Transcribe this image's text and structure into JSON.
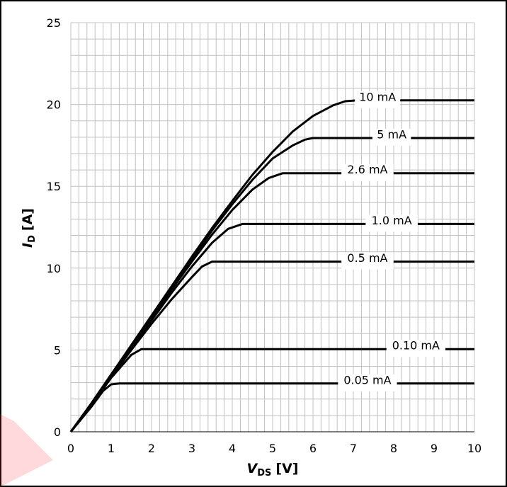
{
  "chart_data": {
    "type": "line",
    "title": "",
    "xlabel_symbol": "V",
    "xlabel_sub": "DS",
    "xlabel_unit": "[V]",
    "ylabel_symbol": "I",
    "ylabel_sub": "D",
    "ylabel_unit": "[A]",
    "xlim": [
      0,
      10
    ],
    "ylim": [
      0,
      25
    ],
    "x_ticks": [
      0,
      1,
      2,
      3,
      4,
      5,
      6,
      7,
      8,
      9,
      10
    ],
    "x_tick_labels": [
      "0",
      "1",
      "2",
      "3",
      "4",
      "5",
      "6",
      "7",
      "8",
      "9",
      "10"
    ],
    "y_ticks": [
      0,
      5,
      10,
      15,
      20,
      25
    ],
    "y_tick_labels": [
      "0",
      "5",
      "10",
      "15",
      "20",
      "25"
    ],
    "grid": true,
    "minor_grid_step_x": 0.2,
    "minor_grid_step_y": 1,
    "line_color": "#000000",
    "grid_color": "#c0c0c0",
    "series": [
      {
        "name": "0.05 mA",
        "label_x": 7.35,
        "points": [
          [
            0,
            0
          ],
          [
            0.5,
            1.5
          ],
          [
            0.8,
            2.5
          ],
          [
            1.0,
            2.9
          ],
          [
            1.2,
            2.95
          ],
          [
            10,
            2.95
          ]
        ]
      },
      {
        "name": "0.10 mA",
        "label_x": 8.55,
        "points": [
          [
            0,
            0
          ],
          [
            0.5,
            1.6
          ],
          [
            1.0,
            3.3
          ],
          [
            1.5,
            4.7
          ],
          [
            1.75,
            5.05
          ],
          [
            2.0,
            5.05
          ],
          [
            10,
            5.05
          ]
        ]
      },
      {
        "name": "0.5 mA",
        "label_x": 7.35,
        "points": [
          [
            0,
            0
          ],
          [
            0.5,
            1.65
          ],
          [
            1.0,
            3.35
          ],
          [
            1.5,
            5.0
          ],
          [
            2.0,
            6.6
          ],
          [
            2.5,
            8.1
          ],
          [
            3.0,
            9.45
          ],
          [
            3.25,
            10.1
          ],
          [
            3.5,
            10.4
          ],
          [
            10,
            10.4
          ]
        ]
      },
      {
        "name": "1.0 mA",
        "label_x": 7.95,
        "points": [
          [
            0,
            0
          ],
          [
            0.5,
            1.65
          ],
          [
            1.0,
            3.4
          ],
          [
            1.5,
            5.1
          ],
          [
            2.0,
            6.8
          ],
          [
            2.5,
            8.5
          ],
          [
            3.0,
            10.1
          ],
          [
            3.5,
            11.55
          ],
          [
            3.9,
            12.4
          ],
          [
            4.25,
            12.7
          ],
          [
            10,
            12.7
          ]
        ]
      },
      {
        "name": "2.6 mA",
        "label_x": 7.35,
        "points": [
          [
            0,
            0
          ],
          [
            0.5,
            1.7
          ],
          [
            1.0,
            3.45
          ],
          [
            1.5,
            5.2
          ],
          [
            2.0,
            6.95
          ],
          [
            2.5,
            8.7
          ],
          [
            3.0,
            10.4
          ],
          [
            3.5,
            12.05
          ],
          [
            4.0,
            13.55
          ],
          [
            4.5,
            14.8
          ],
          [
            4.9,
            15.5
          ],
          [
            5.25,
            15.8
          ],
          [
            10,
            15.8
          ]
        ]
      },
      {
        "name": "5 mA",
        "label_x": 7.95,
        "points": [
          [
            0,
            0
          ],
          [
            0.5,
            1.7
          ],
          [
            1.0,
            3.5
          ],
          [
            1.5,
            5.25
          ],
          [
            2.0,
            7.0
          ],
          [
            2.5,
            8.8
          ],
          [
            3.0,
            10.55
          ],
          [
            3.5,
            12.3
          ],
          [
            4.0,
            13.9
          ],
          [
            4.5,
            15.4
          ],
          [
            5.0,
            16.7
          ],
          [
            5.5,
            17.5
          ],
          [
            5.8,
            17.85
          ],
          [
            6.0,
            17.95
          ],
          [
            10,
            17.95
          ]
        ]
      },
      {
        "name": "10 mA",
        "label_x": 7.6,
        "points": [
          [
            0,
            0
          ],
          [
            0.5,
            1.7
          ],
          [
            1.0,
            3.5
          ],
          [
            1.5,
            5.3
          ],
          [
            2.0,
            7.1
          ],
          [
            2.5,
            8.9
          ],
          [
            3.0,
            10.7
          ],
          [
            3.5,
            12.45
          ],
          [
            4.0,
            14.1
          ],
          [
            4.5,
            15.7
          ],
          [
            5.0,
            17.1
          ],
          [
            5.5,
            18.35
          ],
          [
            6.0,
            19.3
          ],
          [
            6.5,
            19.95
          ],
          [
            6.8,
            20.2
          ],
          [
            7.1,
            20.25
          ],
          [
            10,
            20.25
          ]
        ]
      }
    ]
  }
}
